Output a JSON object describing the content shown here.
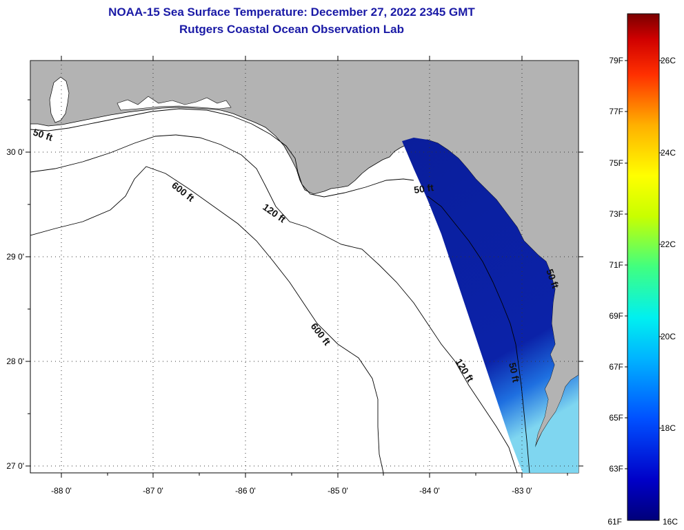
{
  "title": {
    "line1": "NOAA-15 Sea Surface Temperature:  December 27, 2022 2345 GMT",
    "line2": "Rutgers Coastal Ocean Observation Lab"
  },
  "axes": {
    "lon_labels": [
      "-88 0'",
      "-87 0'",
      "-86 0'",
      "-85 0'",
      "-84 0'",
      "-83 0'"
    ],
    "lat_labels": [
      "30 0'",
      "29 0'",
      "28 0'",
      "27 0'"
    ]
  },
  "contours": [
    {
      "label": "50 ft"
    },
    {
      "label": "600 ft"
    },
    {
      "label": "120 ft"
    },
    {
      "label": "50 ft"
    },
    {
      "label": "600 ft"
    },
    {
      "label": "120 ft"
    },
    {
      "label": "50 ft"
    },
    {
      "label": "50 ft"
    }
  ],
  "colorbar": {
    "fahrenheit": [
      "79F",
      "77F",
      "75F",
      "73F",
      "71F",
      "69F",
      "67F",
      "65F",
      "63F",
      "61F"
    ],
    "celsius": [
      "26C",
      "24C",
      "22C",
      "20C",
      "18C",
      "16C"
    ]
  },
  "colors": {
    "land": "#b3b3b3",
    "sea_cold": "#0a1e9c",
    "title": "#1a1aa6"
  }
}
